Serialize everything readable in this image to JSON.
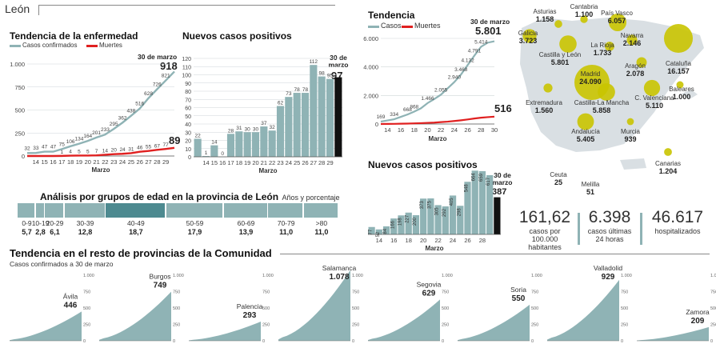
{
  "header": {
    "region": "León"
  },
  "tendencia_leon": {
    "title": "Tendencia de la enfermedad",
    "legend_cases": "Casos confirmados",
    "legend_deaths": "Muertes",
    "date_label": "30 de marzo",
    "final_cases": "918",
    "final_deaths": "89",
    "xlabel": "Marzo"
  },
  "nuevos_leon": {
    "title": "Nuevos casos positivos",
    "date_label": "30 de marzo",
    "final_value": "97",
    "xlabel": "Marzo"
  },
  "tendencia_cyl": {
    "title": "Tendencia",
    "legend_cases": "Casos",
    "legend_deaths": "Muertes",
    "date_label": "30 de marzo",
    "final_cases": "5.801",
    "final_deaths": "516",
    "xlabel": "Marzo"
  },
  "nuevos_cyl": {
    "title": "Nuevos casos positivos",
    "date_label": "30 de marzo",
    "final_value": "387",
    "xlabel": "Marzo"
  },
  "age": {
    "title": "Análisis por grupos de edad en la provincia de León",
    "subtitle": "Años y porcentaje",
    "groups": [
      {
        "label": "0-9",
        "pct": "5,7",
        "value": 5.7
      },
      {
        "label": "10-19",
        "pct": "2,8",
        "value": 2.8
      },
      {
        "label": "20-29",
        "pct": "6,1",
        "value": 6.1
      },
      {
        "label": "30-39",
        "pct": "12,8",
        "value": 12.8
      },
      {
        "label": "40-49",
        "pct": "18,7",
        "value": 18.7
      },
      {
        "label": "50-59",
        "pct": "17,9",
        "value": 17.9
      },
      {
        "label": "60-69",
        "pct": "13,9",
        "value": 13.9
      },
      {
        "label": "70-79",
        "pct": "11,0",
        "value": 11.0
      },
      {
        "label": ">80",
        "pct": "11,0",
        "value": 11.0
      }
    ],
    "colors": {
      "normal": "#8fb3b5",
      "highlight": "#4d8a90"
    }
  },
  "resto": {
    "title": "Tendencia en el resto de provincias de la Comunidad",
    "subtitle": "Casos confirmados a 30 de marzo",
    "provinces": [
      {
        "name": "Ávila",
        "value": "446",
        "v": 446
      },
      {
        "name": "Burgos",
        "value": "749",
        "v": 749
      },
      {
        "name": "Palencia",
        "value": "293",
        "v": 293
      },
      {
        "name": "Salamanca",
        "value": "1.078",
        "v": 1078
      },
      {
        "name": "Segovia",
        "value": "629",
        "v": 629
      },
      {
        "name": "Soria",
        "value": "550",
        "v": 550
      },
      {
        "name": "Valladolid",
        "value": "929",
        "v": 929
      },
      {
        "name": "Zamora",
        "value": "209",
        "v": 209
      }
    ],
    "axis_ticks": [
      "1.000",
      "750",
      "500",
      "250",
      "0"
    ]
  },
  "map": {
    "regions": [
      {
        "name": "Asturias",
        "value": "1.158",
        "v": 1158
      },
      {
        "name": "Cantabria",
        "value": "1.100",
        "v": 1100
      },
      {
        "name": "País Vasco",
        "value": "6.057",
        "v": 6057
      },
      {
        "name": "Galicia",
        "value": "3.723",
        "v": 3723
      },
      {
        "name": "Navarra",
        "value": "2.146",
        "v": 2146
      },
      {
        "name": "La Rioja",
        "value": "1.733",
        "v": 1733
      },
      {
        "name": "Castilla y León",
        "value": "5.801",
        "v": 5801
      },
      {
        "name": "Cataluña",
        "value": "16.157",
        "v": 16157
      },
      {
        "name": "Aragón",
        "value": "2.078",
        "v": 2078
      },
      {
        "name": "Madrid",
        "value": "24.090",
        "v": 24090
      },
      {
        "name": "Baleares",
        "value": "1.000",
        "v": 1000
      },
      {
        "name": "Extremadura",
        "value": "1.560",
        "v": 1560
      },
      {
        "name": "Castilla-La Mancha",
        "value": "5.858",
        "v": 5858
      },
      {
        "name": "C. Valenciana",
        "value": "5.110",
        "v": 5110
      },
      {
        "name": "Murcia",
        "value": "939",
        "v": 939
      },
      {
        "name": "Andalucía",
        "value": "5.405",
        "v": 5405
      },
      {
        "name": "Canarias",
        "value": "1.204",
        "v": 1204
      },
      {
        "name": "Ceuta",
        "value": "25",
        "v": 25
      },
      {
        "name": "Melilla",
        "value": "51",
        "v": 51
      }
    ],
    "bubble_color": "#c9c400",
    "land_color": "#d9dfe3"
  },
  "stats": [
    {
      "value": "161,62",
      "caption": "casos por 100.000 habitantes"
    },
    {
      "value": "6.398",
      "caption": "casos últimas 24 horas"
    },
    {
      "value": "46.617",
      "caption": "hospitalizados"
    }
  ],
  "colors": {
    "cases": "#8fb3b5",
    "deaths": "#e02020",
    "bar": "#8fb3b5",
    "last_bar": "#111111"
  },
  "chart_data": [
    {
      "type": "line",
      "title": "Tendencia de la enfermedad",
      "xlabel": "Marzo",
      "x": [
        13,
        14,
        15,
        16,
        17,
        18,
        19,
        20,
        21,
        22,
        23,
        24,
        25,
        26,
        27,
        28,
        29,
        30
      ],
      "series": [
        {
          "name": "Casos confirmados",
          "values": [
            32,
            33,
            47,
            47,
            75,
            106,
            134,
            164,
            201,
            233,
            295,
            362,
            438,
            516,
            628,
            726,
            821,
            918
          ]
        },
        {
          "name": "Muertes",
          "values": [
            0,
            0,
            0,
            0,
            1,
            4,
            5,
            5,
            7,
            14,
            20,
            24,
            31,
            46,
            55,
            67,
            77,
            89
          ]
        }
      ],
      "ylim": [
        0,
        1000
      ],
      "yticks": [
        0,
        250,
        500,
        750,
        1000
      ],
      "xticks": [
        14,
        15,
        16,
        17,
        18,
        19,
        20,
        21,
        22,
        23,
        24,
        25,
        26,
        27,
        28,
        29
      ]
    },
    {
      "type": "bar",
      "title": "Nuevos casos positivos",
      "xlabel": "Marzo",
      "categories": [
        13,
        14,
        15,
        16,
        17,
        18,
        19,
        20,
        21,
        22,
        23,
        24,
        25,
        26,
        27,
        28,
        29,
        30
      ],
      "values": [
        22,
        1,
        14,
        0,
        28,
        31,
        30,
        30,
        37,
        32,
        62,
        73,
        78,
        78,
        112,
        98,
        95,
        97
      ],
      "ylim": [
        0,
        120
      ],
      "yticks": [
        0,
        10,
        20,
        30,
        40,
        50,
        60,
        70,
        80,
        90,
        100,
        110,
        120
      ],
      "xticks": [
        14,
        15,
        16,
        17,
        18,
        19,
        20,
        21,
        22,
        23,
        24,
        25,
        26,
        27,
        28,
        29
      ]
    },
    {
      "type": "line",
      "title": "Tendencia",
      "xlabel": "Marzo",
      "x": [
        13,
        14,
        15,
        16,
        17,
        18,
        19,
        20,
        21,
        22,
        23,
        24,
        25,
        26,
        27,
        28,
        29,
        30
      ],
      "series": [
        {
          "name": "Casos",
          "values": [
            169,
            250,
            334,
            500,
            668,
            868,
            1100,
            1466,
            1750,
            2055,
            2500,
            2940,
            3468,
            4132,
            4791,
            5414,
            5700,
            5801
          ]
        },
        {
          "name": "Muertes",
          "values": [
            0,
            5,
            10,
            20,
            30,
            45,
            60,
            80,
            100,
            135,
            165,
            210,
            260,
            320,
            385,
            440,
            480,
            516
          ]
        }
      ],
      "ylim": [
        0,
        6000
      ],
      "yticks": [
        0,
        2000,
        4000,
        6000
      ],
      "xticks": [
        14,
        16,
        18,
        20,
        22,
        24,
        26,
        28,
        30
      ]
    },
    {
      "type": "bar",
      "title": "Nuevos casos positivos",
      "xlabel": "Marzo",
      "categories": [
        13,
        14,
        15,
        16,
        17,
        18,
        19,
        20,
        21,
        22,
        23,
        24,
        25,
        26,
        27,
        28,
        29,
        30
      ],
      "values": [
        77,
        52,
        84,
        166,
        198,
        227,
        200,
        373,
        375,
        305,
        292,
        405,
        298,
        548,
        664,
        659,
        617,
        387
      ],
      "ylim": [
        0,
        700
      ],
      "xticks": [
        14,
        16,
        18,
        20,
        22,
        24,
        26,
        28
      ]
    }
  ]
}
